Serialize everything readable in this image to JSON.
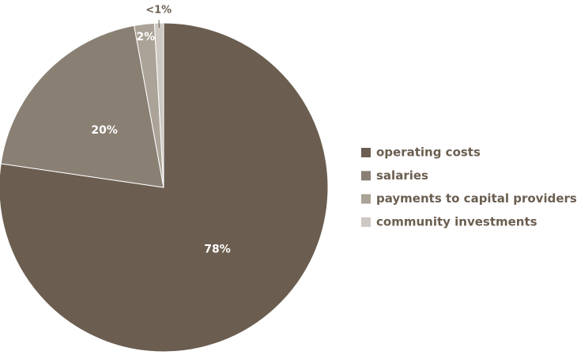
{
  "chart_data": {
    "type": "pie",
    "categories": [
      "operating costs",
      "salaries",
      "payments to capital providers",
      "community investments"
    ],
    "values": [
      78,
      20,
      2,
      0.9
    ],
    "value_labels": [
      "78%",
      "20%",
      "2%",
      "<1%"
    ],
    "colors": [
      "#6b5e50",
      "#8a7f73",
      "#aba397",
      "#cdc8c1"
    ],
    "legend": "right"
  }
}
